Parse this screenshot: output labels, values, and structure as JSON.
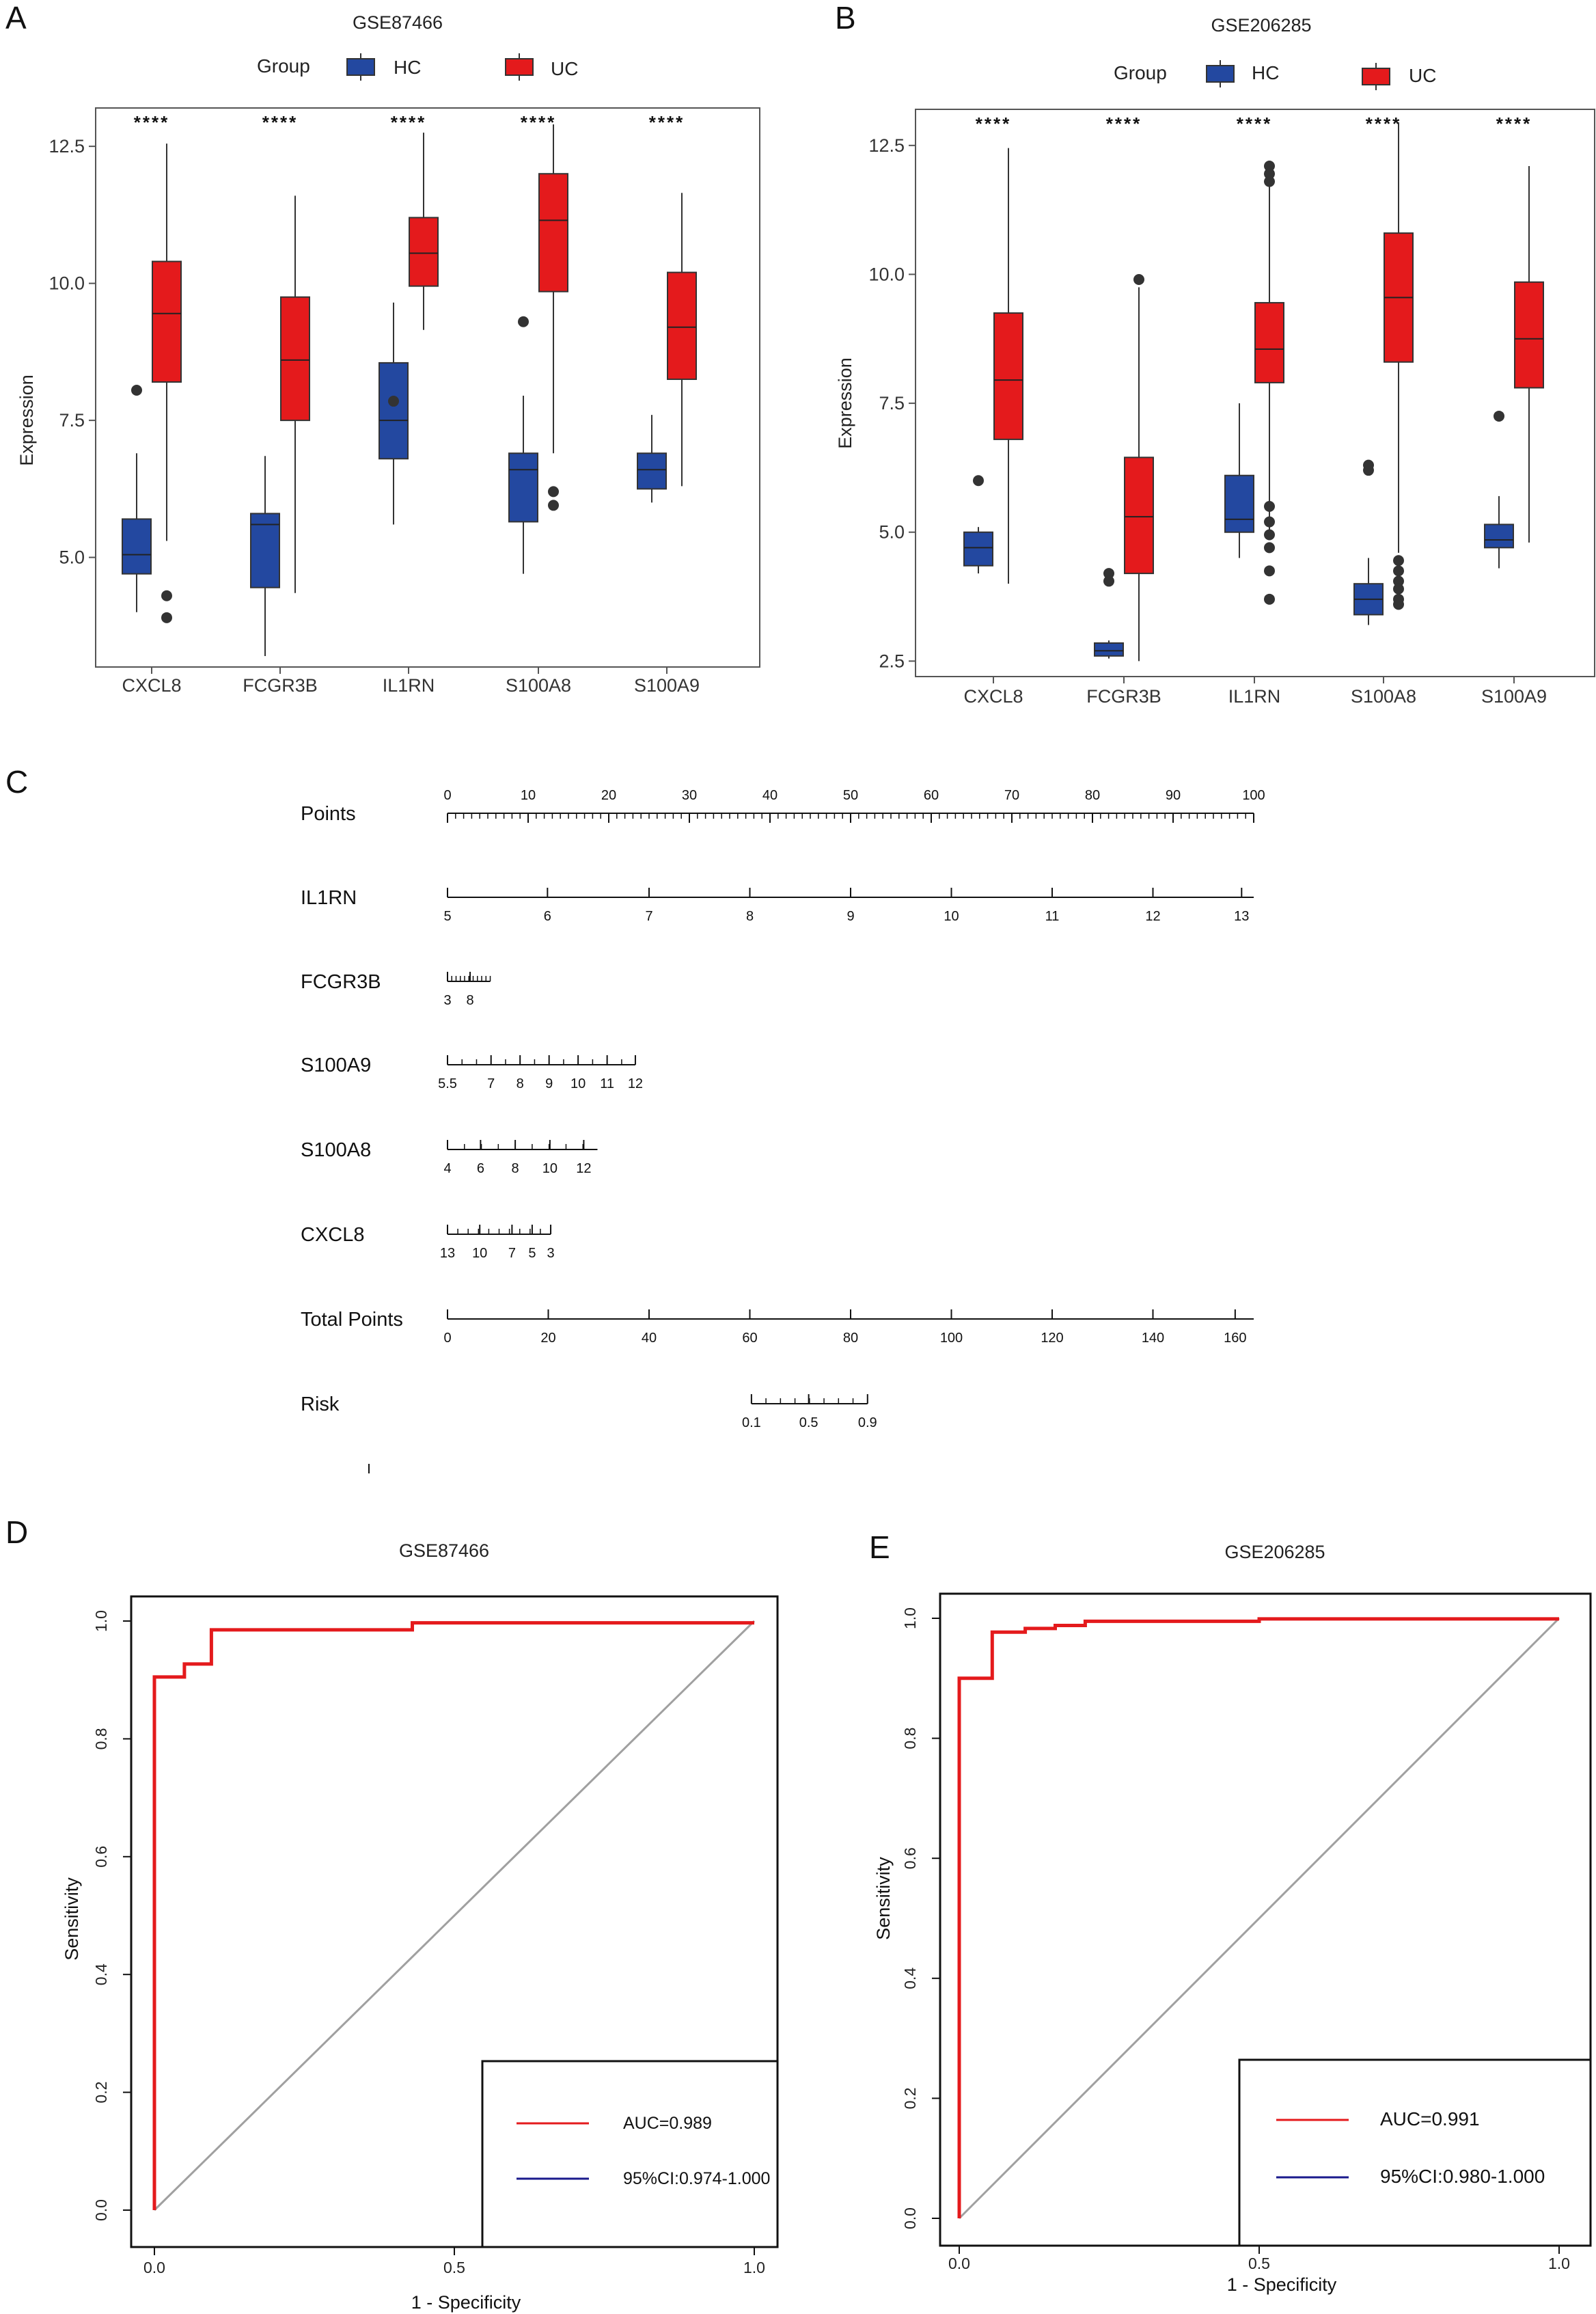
{
  "chart_data": [
    {
      "panel": "A",
      "type": "box",
      "title": "GSE87466",
      "legend_title": "Group",
      "legend": [
        {
          "name": "HC",
          "color": "#2348a0"
        },
        {
          "name": "UC",
          "color": "#e41a1c"
        }
      ],
      "ylabel": "Expression",
      "ylim": [
        3.0,
        13.2
      ],
      "yticks": [
        "5.0",
        "7.5",
        "10.0",
        "12.5"
      ],
      "significance": "****",
      "categories": [
        "CXCL8",
        "FCGR3B",
        "IL1RN",
        "S100A8",
        "S100A9"
      ],
      "series": [
        {
          "name": "HC",
          "boxes": [
            {
              "lo": 4.0,
              "q1": 4.7,
              "med": 5.05,
              "q3": 5.7,
              "hi": 6.9,
              "outliers": [
                8.05
              ]
            },
            {
              "lo": 3.2,
              "q1": 4.45,
              "med": 5.6,
              "q3": 5.8,
              "hi": 6.85,
              "outliers": []
            },
            {
              "lo": 5.6,
              "q1": 6.8,
              "med": 7.5,
              "q3": 8.55,
              "hi": 9.65,
              "outliers": [
                7.85
              ]
            },
            {
              "lo": 4.7,
              "q1": 5.65,
              "med": 6.6,
              "q3": 6.9,
              "hi": 7.95,
              "outliers": [
                9.3
              ]
            },
            {
              "lo": 6.0,
              "q1": 6.25,
              "med": 6.6,
              "q3": 6.9,
              "hi": 7.6,
              "outliers": []
            }
          ]
        },
        {
          "name": "UC",
          "boxes": [
            {
              "lo": 5.3,
              "q1": 8.2,
              "med": 9.45,
              "q3": 10.4,
              "hi": 12.55,
              "outliers": [
                4.3,
                3.9
              ]
            },
            {
              "lo": 4.35,
              "q1": 7.5,
              "med": 8.6,
              "q3": 9.75,
              "hi": 11.6,
              "outliers": []
            },
            {
              "lo": 9.15,
              "q1": 9.95,
              "med": 10.55,
              "q3": 11.2,
              "hi": 12.75,
              "outliers": []
            },
            {
              "lo": 6.9,
              "q1": 9.85,
              "med": 11.15,
              "q3": 12.0,
              "hi": 12.9,
              "outliers": [
                6.2,
                5.95
              ]
            },
            {
              "lo": 6.3,
              "q1": 8.25,
              "med": 9.2,
              "q3": 10.2,
              "hi": 11.65,
              "outliers": []
            }
          ]
        }
      ]
    },
    {
      "panel": "B",
      "type": "box",
      "title": "GSE206285",
      "legend_title": "Group",
      "legend": [
        {
          "name": "HC",
          "color": "#2348a0"
        },
        {
          "name": "UC",
          "color": "#e41a1c"
        }
      ],
      "ylabel": "Expression",
      "ylim": [
        2.2,
        13.2
      ],
      "yticks": [
        "2.5",
        "5.0",
        "7.5",
        "10.0",
        "12.5"
      ],
      "significance": "****",
      "categories": [
        "CXCL8",
        "FCGR3B",
        "IL1RN",
        "S100A8",
        "S100A9"
      ],
      "series": [
        {
          "name": "HC",
          "boxes": [
            {
              "lo": 4.2,
              "q1": 4.35,
              "med": 4.7,
              "q3": 5.0,
              "hi": 5.1,
              "outliers": [
                6.0
              ]
            },
            {
              "lo": 2.55,
              "q1": 2.6,
              "med": 2.7,
              "q3": 2.85,
              "hi": 2.9,
              "outliers": [
                4.2,
                4.05
              ]
            },
            {
              "lo": 4.5,
              "q1": 5.0,
              "med": 5.25,
              "q3": 6.1,
              "hi": 7.5,
              "outliers": []
            },
            {
              "lo": 3.2,
              "q1": 3.4,
              "med": 3.7,
              "q3": 4.0,
              "hi": 4.5,
              "outliers": [
                6.3,
                6.2
              ]
            },
            {
              "lo": 4.3,
              "q1": 4.7,
              "med": 4.85,
              "q3": 5.15,
              "hi": 5.7,
              "outliers": [
                7.25
              ]
            }
          ]
        },
        {
          "name": "UC",
          "boxes": [
            {
              "lo": 4.0,
              "q1": 6.8,
              "med": 7.95,
              "q3": 9.25,
              "hi": 12.45,
              "outliers": []
            },
            {
              "lo": 2.5,
              "q1": 4.2,
              "med": 5.3,
              "q3": 6.45,
              "hi": 9.75,
              "outliers": [
                9.9
              ]
            },
            {
              "lo": 4.9,
              "q1": 7.9,
              "med": 8.55,
              "q3": 9.45,
              "hi": 11.7,
              "outliers": [
                12.1,
                11.95,
                11.8,
                5.5,
                5.2,
                4.95,
                4.7,
                4.25,
                3.7
              ]
            },
            {
              "lo": 4.6,
              "q1": 8.3,
              "med": 9.55,
              "q3": 10.8,
              "hi": 12.95,
              "outliers": [
                4.45,
                4.25,
                4.05,
                3.9,
                3.7,
                3.6
              ]
            },
            {
              "lo": 4.8,
              "q1": 7.8,
              "med": 8.75,
              "q3": 9.85,
              "hi": 12.1,
              "outliers": []
            }
          ]
        }
      ]
    },
    {
      "panel": "C",
      "type": "nomogram",
      "rows": [
        {
          "label": "Points",
          "span": [
            0,
            100
          ],
          "ticks": [
            {
              "v": 0,
              "t": "0"
            },
            {
              "v": 10,
              "t": "10"
            },
            {
              "v": 20,
              "t": "20"
            },
            {
              "v": 30,
              "t": "30"
            },
            {
              "v": 40,
              "t": "40"
            },
            {
              "v": 50,
              "t": "50"
            },
            {
              "v": 60,
              "t": "60"
            },
            {
              "v": 70,
              "t": "70"
            },
            {
              "v": 80,
              "t": "80"
            },
            {
              "v": 90,
              "t": "90"
            },
            {
              "v": 100,
              "t": "100"
            }
          ],
          "minor": 1,
          "labels_above": true
        },
        {
          "label": "IL1RN",
          "span": [
            0,
            100
          ],
          "ticks": [
            {
              "v": 0,
              "t": "5"
            },
            {
              "v": 12.4,
              "t": "6"
            },
            {
              "v": 25,
              "t": "7"
            },
            {
              "v": 37.5,
              "t": "8"
            },
            {
              "v": 50,
              "t": "9"
            },
            {
              "v": 62.5,
              "t": "10"
            },
            {
              "v": 75,
              "t": "11"
            },
            {
              "v": 87.5,
              "t": "12"
            },
            {
              "v": 98.5,
              "t": "13"
            }
          ],
          "minor": 0
        },
        {
          "label": "FCGR3B",
          "span": [
            0,
            5.3
          ],
          "ticks": [
            {
              "v": 0,
              "t": "3"
            },
            {
              "v": 2.8,
              "t": "8"
            }
          ],
          "minor": 0.53
        },
        {
          "label": "S100A9",
          "span": [
            0,
            23.3
          ],
          "ticks": [
            {
              "v": 0,
              "t": "5.5"
            },
            {
              "v": 5.4,
              "t": "7"
            },
            {
              "v": 9,
              "t": "8"
            },
            {
              "v": 12.6,
              "t": "9"
            },
            {
              "v": 16.2,
              "t": "10"
            },
            {
              "v": 19.8,
              "t": "11"
            },
            {
              "v": 23.3,
              "t": "12"
            }
          ],
          "minor": 1.8
        },
        {
          "label": "S100A8",
          "span": [
            0,
            18.6
          ],
          "ticks": [
            {
              "v": 0,
              "t": "4"
            },
            {
              "v": 4.1,
              "t": "6"
            },
            {
              "v": 8.4,
              "t": "8"
            },
            {
              "v": 12.7,
              "t": "10"
            },
            {
              "v": 16.9,
              "t": "12"
            }
          ],
          "minor": 2.1
        },
        {
          "label": "CXCL8",
          "span": [
            0,
            12.8
          ],
          "ticks": [
            {
              "v": 0,
              "t": "13"
            },
            {
              "v": 4,
              "t": "10"
            },
            {
              "v": 8,
              "t": "7"
            },
            {
              "v": 10.5,
              "t": "5"
            },
            {
              "v": 12.8,
              "t": "3"
            }
          ],
          "minor": 1.28
        },
        {
          "label": "Total Points",
          "span": [
            0,
            100
          ],
          "ticks": [
            {
              "v": 0,
              "t": "0"
            },
            {
              "v": 12.5,
              "t": "20"
            },
            {
              "v": 25,
              "t": "40"
            },
            {
              "v": 37.5,
              "t": "60"
            },
            {
              "v": 50,
              "t": "80"
            },
            {
              "v": 62.5,
              "t": "100"
            },
            {
              "v": 75,
              "t": "120"
            },
            {
              "v": 87.5,
              "t": "140"
            },
            {
              "v": 97.7,
              "t": "160"
            }
          ],
          "minor": 0
        },
        {
          "label": "Risk",
          "span": [
            37.7,
            52.1
          ],
          "ticks": [
            {
              "v": 37.7,
              "t": "0.1"
            },
            {
              "v": 44.8,
              "t": "0.5"
            },
            {
              "v": 52.1,
              "t": "0.9"
            }
          ],
          "minor": 1.8
        }
      ]
    },
    {
      "panel": "D",
      "type": "roc",
      "title": "GSE87466",
      "xlabel": "1 - Specificity",
      "ylabel": "Sensitivity",
      "xticks": [
        "0.0",
        "0.5",
        "1.0"
      ],
      "yticks": [
        "0.0",
        "0.2",
        "0.4",
        "0.6",
        "0.8",
        "1.0"
      ],
      "curve": [
        [
          0,
          0
        ],
        [
          0,
          0.905
        ],
        [
          0.05,
          0.905
        ],
        [
          0.05,
          0.927
        ],
        [
          0.095,
          0.927
        ],
        [
          0.095,
          0.985
        ],
        [
          0.43,
          0.985
        ],
        [
          0.43,
          0.997
        ],
        [
          1.0,
          0.997
        ]
      ],
      "legend": [
        {
          "label": "AUC=0.989",
          "color": "#e41a1c"
        },
        {
          "label": "95%CI:0.974-1.000",
          "color": "#1a1a8c"
        }
      ]
    },
    {
      "panel": "E",
      "type": "roc",
      "title": "GSE206285",
      "xlabel": "1 - Specificity",
      "ylabel": "Sensitivity",
      "xticks": [
        "0.0",
        "0.5",
        "1.0"
      ],
      "yticks": [
        "0.0",
        "0.2",
        "0.4",
        "0.6",
        "0.8",
        "1.0"
      ],
      "curve": [
        [
          0,
          0
        ],
        [
          0,
          0.9
        ],
        [
          0.055,
          0.9
        ],
        [
          0.055,
          0.977
        ],
        [
          0.11,
          0.977
        ],
        [
          0.11,
          0.983
        ],
        [
          0.16,
          0.983
        ],
        [
          0.16,
          0.988
        ],
        [
          0.21,
          0.988
        ],
        [
          0.21,
          0.995
        ],
        [
          0.5,
          0.995
        ],
        [
          0.5,
          0.999
        ],
        [
          1.0,
          0.999
        ]
      ],
      "legend": [
        {
          "label": "AUC=0.991",
          "color": "#e41a1c"
        },
        {
          "label": "95%CI:0.980-1.000",
          "color": "#1a1a8c"
        }
      ]
    }
  ]
}
